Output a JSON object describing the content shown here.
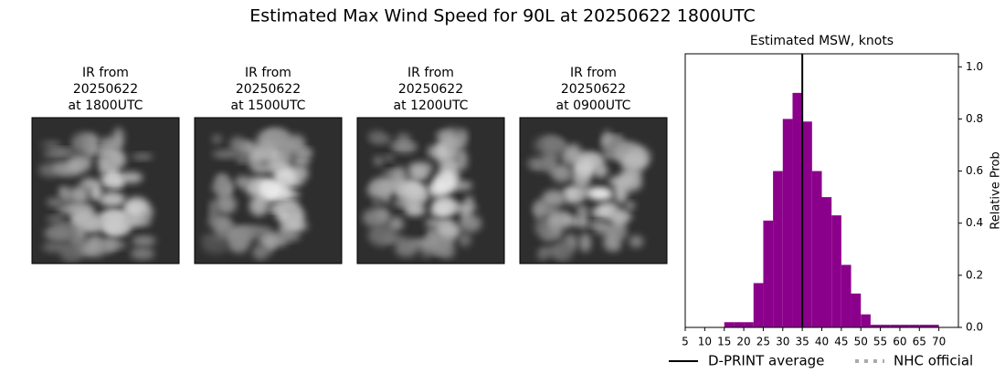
{
  "title": "Estimated Max Wind Speed for 90L at 20250622 1800UTC",
  "panels": [
    {
      "lines": [
        "IR from",
        "20250622",
        "at 1800UTC"
      ]
    },
    {
      "lines": [
        "IR from",
        "20250622",
        "at 1500UTC"
      ]
    },
    {
      "lines": [
        "IR from",
        "20250622",
        "at 1200UTC"
      ]
    },
    {
      "lines": [
        "IR from",
        "20250622",
        "at 0900UTC"
      ]
    }
  ],
  "chart_data": {
    "type": "histogram",
    "title": "Estimated MSW, knots",
    "y_label": "Relative Prob",
    "color": "#8b008b",
    "bins": [
      15,
      17.5,
      20,
      22.5,
      25,
      27.5,
      30,
      32.5,
      35,
      37.5,
      40,
      42.5,
      45,
      47.5,
      50,
      52.5,
      55,
      57.5,
      60,
      62.5,
      65,
      67.5,
      70
    ],
    "values": [
      0.02,
      0.02,
      0.02,
      0.17,
      0.41,
      0.6,
      0.8,
      0.9,
      0.79,
      0.6,
      0.5,
      0.43,
      0.24,
      0.13,
      0.05,
      0.01,
      0.01,
      0.01,
      0.01,
      0.01,
      0.01,
      0.01
    ],
    "average": 35,
    "xlim": [
      5,
      75
    ],
    "ylim": [
      0,
      1.05
    ],
    "xticks": [
      5,
      10,
      15,
      20,
      25,
      30,
      35,
      40,
      45,
      50,
      55,
      60,
      65,
      70
    ],
    "yticks": [
      {
        "value": 0,
        "label": "0.0"
      },
      0.2,
      0.4,
      0.6,
      0.8,
      {
        "value": 1,
        "label": "1.0"
      }
    ],
    "legend": [
      {
        "name": "D-PRINT average",
        "color": "#000000"
      },
      {
        "name": "NHC official",
        "color": "#aaaaaa"
      }
    ]
  }
}
